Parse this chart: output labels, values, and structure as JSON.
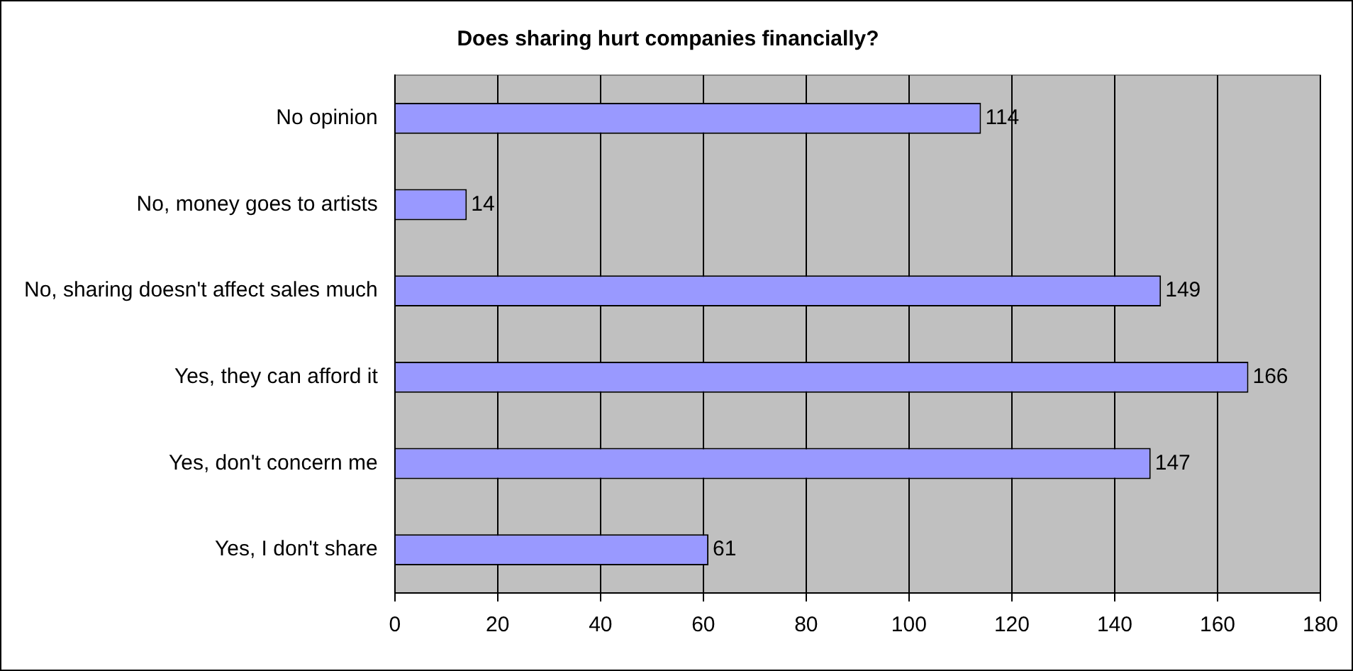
{
  "chart_data": {
    "type": "bar",
    "orientation": "horizontal",
    "title": "Does sharing hurt companies financially?",
    "categories": [
      "No opinion",
      "No, money goes to artists",
      "No, sharing doesn't affect sales much",
      "Yes, they can afford it",
      "Yes, don't concern me",
      "Yes, I don't share"
    ],
    "values": [
      114,
      14,
      149,
      166,
      147,
      61
    ],
    "color": "#9999ff",
    "xlim": [
      0,
      180
    ],
    "xticks": [
      0,
      20,
      40,
      60,
      80,
      100,
      120,
      140,
      160,
      180
    ],
    "grid": "x",
    "data_labels": true,
    "legend": false
  }
}
